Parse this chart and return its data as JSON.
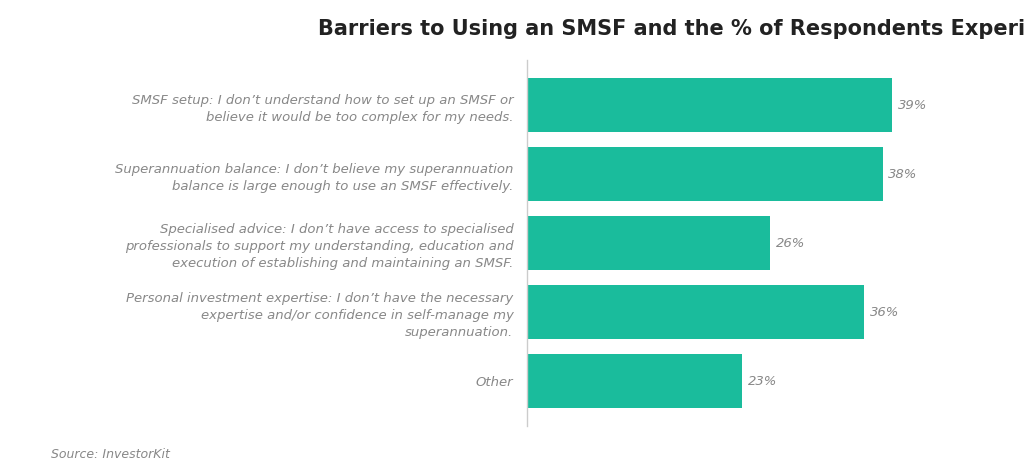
{
  "title": "Barriers to Using an SMSF and the % of Respondents Experiencing Each",
  "categories": [
    "SMSF setup: I don’t understand how to set up an SMSF or\nbelieve it would be too complex for my needs.",
    "Superannuation balance: I don’t believe my superannuation\nbalance is large enough to use an SMSF effectively.",
    "Specialised advice: I don’t have access to specialised\nprofessionals to support my understanding, education and\nexecution of establishing and maintaining an SMSF.",
    "Personal investment expertise: I don’t have the necessary\nexpertise and/or confidence in self-manage my\nsuperannuation.",
    "Other"
  ],
  "values": [
    39,
    38,
    26,
    36,
    23
  ],
  "bar_color": "#1ABC9C",
  "text_color": "#888888",
  "title_color": "#222222",
  "background_color": "#ffffff",
  "source_text": "Source: InvestorKit",
  "xlim": [
    0,
    46
  ],
  "bar_height": 0.78,
  "title_fontsize": 15,
  "label_fontsize": 9.5,
  "value_fontsize": 9.5,
  "source_fontsize": 9
}
